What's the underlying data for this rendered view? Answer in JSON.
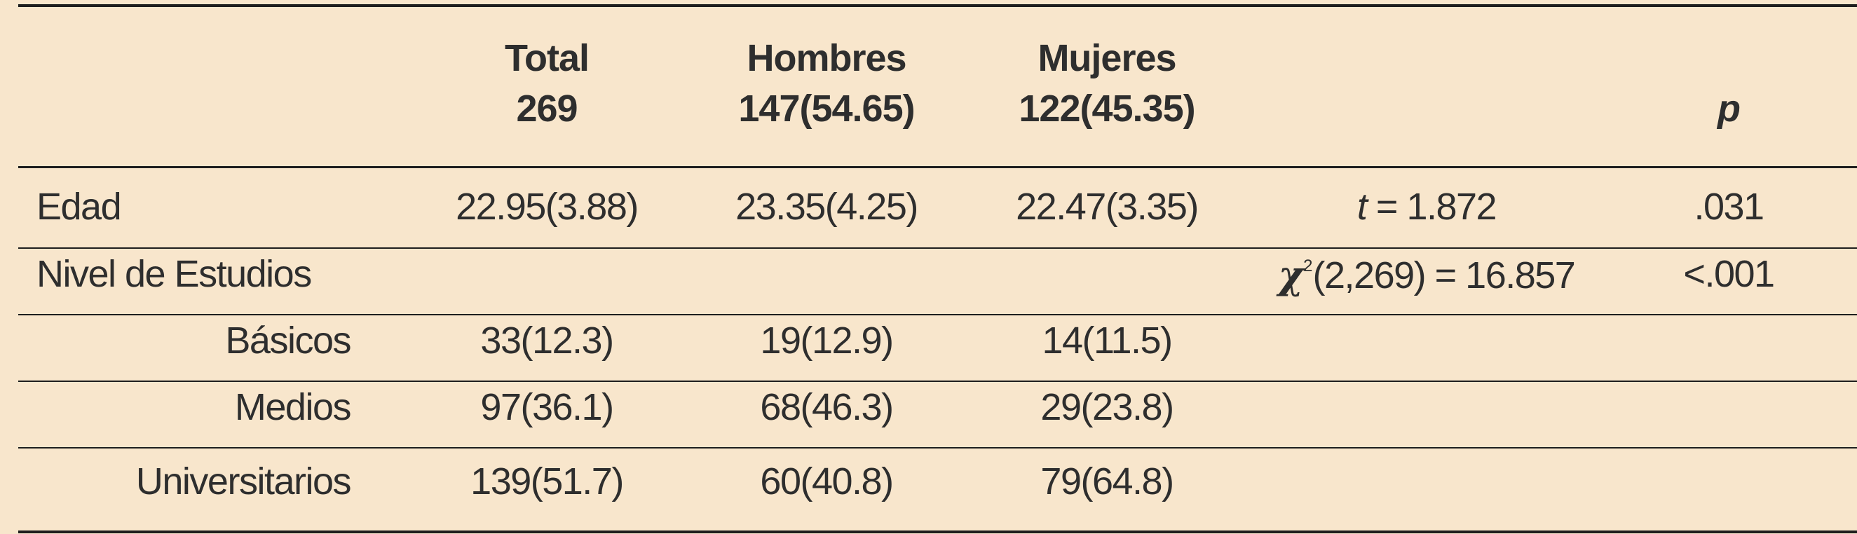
{
  "header": {
    "total_label": "Total",
    "total_n": "269",
    "hombres_label": "Hombres",
    "hombres_n": "147(54.65)",
    "mujeres_label": "Mujeres",
    "mujeres_n": "122(45.35)",
    "p_label": "p"
  },
  "rows": {
    "edad": {
      "label": "Edad",
      "total": "22.95(3.88)",
      "hombres": "23.35(4.25)",
      "mujeres": "22.47(3.35)",
      "stat_symbol": "t",
      "stat_value": " = 1.872",
      "p": ".031"
    },
    "nivel": {
      "label": "Nivel de Estudios",
      "stat_symbol": "χ",
      "stat_sup": "2",
      "stat_value": "(2,269) = 16.857",
      "p": "<.001"
    },
    "basicos": {
      "label": "Básicos",
      "total": "33(12.3)",
      "hombres": "19(12.9)",
      "mujeres": "14(11.5)"
    },
    "medios": {
      "label": "Medios",
      "total": "97(36.1)",
      "hombres": "68(46.3)",
      "mujeres": "29(23.8)"
    },
    "universitarios": {
      "label": "Universitarios",
      "total": "139(51.7)",
      "hombres": "60(40.8)",
      "mujeres": "79(64.8)"
    }
  }
}
